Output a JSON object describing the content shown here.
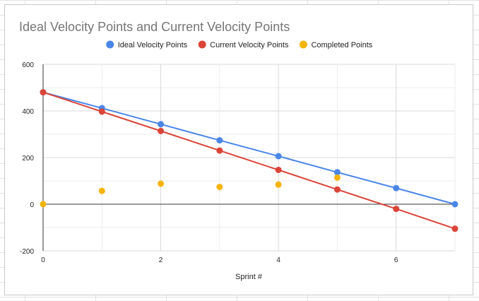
{
  "chart_data": {
    "type": "line",
    "title": "Ideal Velocity Points and Current Velocity Points",
    "xlabel": "Sprint #",
    "ylabel": "",
    "xlim": [
      0,
      7
    ],
    "ylim": [
      -200,
      600
    ],
    "x_ticks": [
      "0",
      "2",
      "4",
      "6"
    ],
    "y_ticks": [
      "600",
      "400",
      "200",
      "0",
      "-200"
    ],
    "grid": true,
    "legend_position": "top",
    "series": [
      {
        "name": "Ideal Velocity Points",
        "color": "#4a86e8",
        "mode": "line+markers",
        "x": [
          0,
          1,
          2,
          3,
          4,
          5,
          6,
          7
        ],
        "values": [
          480,
          412,
          343,
          274,
          206,
          137,
          69,
          0
        ]
      },
      {
        "name": "Current Velocity Points",
        "color": "#db4437",
        "mode": "line+markers",
        "x": [
          0,
          1,
          2,
          3,
          4,
          5,
          6,
          7
        ],
        "values": [
          480,
          397,
          314,
          230,
          147,
          63,
          -20,
          -105
        ]
      },
      {
        "name": "Completed Points",
        "color": "#f4b400",
        "mode": "markers",
        "x": [
          0,
          1,
          2,
          3,
          4,
          5
        ],
        "values": [
          0,
          57,
          88,
          74,
          84,
          114
        ]
      }
    ]
  }
}
